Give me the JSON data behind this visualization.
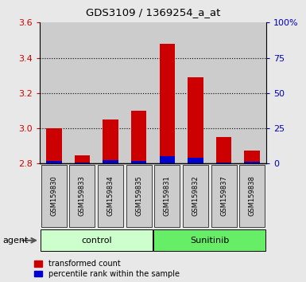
{
  "title": "GDS3109 / 1369254_a_at",
  "samples": [
    "GSM159830",
    "GSM159833",
    "GSM159834",
    "GSM159835",
    "GSM159831",
    "GSM159832",
    "GSM159837",
    "GSM159838"
  ],
  "groups": [
    "control",
    "control",
    "control",
    "control",
    "Sunitinib",
    "Sunitinib",
    "Sunitinib",
    "Sunitinib"
  ],
  "group_labels": [
    "control",
    "Sunitinib"
  ],
  "group_colors": [
    "#ccffcc",
    "#66ee66"
  ],
  "baseline": 2.8,
  "red_tops": [
    3.0,
    2.845,
    3.05,
    3.1,
    3.48,
    3.29,
    2.95,
    2.875
  ],
  "blue_tops": [
    2.816,
    2.807,
    2.818,
    2.815,
    2.84,
    2.832,
    2.808,
    2.812
  ],
  "bar_color_red": "#cc0000",
  "bar_color_blue": "#0000cc",
  "ylim_left": [
    2.8,
    3.6
  ],
  "ylim_right": [
    0,
    100
  ],
  "yticks_left": [
    2.8,
    3.0,
    3.2,
    3.4,
    3.6
  ],
  "yticks_right": [
    0,
    25,
    50,
    75,
    100
  ],
  "ytick_labels_right": [
    "0",
    "25",
    "50",
    "75",
    "100%"
  ],
  "bg_color": "#e8e8e8",
  "plot_bg": "#ffffff",
  "col_bg": "#cccccc",
  "agent_label": "agent",
  "legend_red": "transformed count",
  "legend_blue": "percentile rank within the sample",
  "bar_width": 0.55,
  "left_tick_color": "#cc0000",
  "right_tick_color": "#0000bb"
}
